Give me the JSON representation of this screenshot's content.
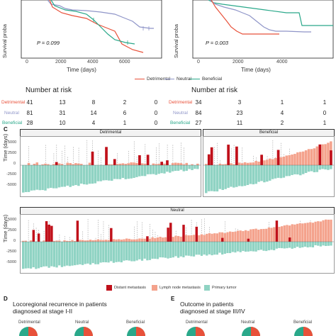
{
  "km": {
    "left": {
      "p_value": "P = 0.099",
      "y_label": "Survival proba",
      "x_label": "Time (days)",
      "x_ticks": [
        "0",
        "2000",
        "4000",
        "6000"
      ]
    },
    "right": {
      "p_value": "P = 0.003",
      "y_label": "Survival proba",
      "x_label": "Time (days)",
      "x_ticks": [
        "0",
        "2000",
        "4000"
      ]
    },
    "legend": [
      {
        "label": "Detrimental",
        "color": "#e8513a"
      },
      {
        "label": "Neutral",
        "color": "#8f95c8"
      },
      {
        "label": "Beneficial",
        "color": "#2aa88a"
      }
    ]
  },
  "risk_tables": {
    "title": "Number at risk",
    "left": {
      "rows": [
        {
          "label": "Detrimental",
          "color": "#e8513a",
          "values": [
            "41",
            "13",
            "8",
            "2",
            "0"
          ]
        },
        {
          "label": "Neutral",
          "color": "#8f95c8",
          "values": [
            "81",
            "31",
            "14",
            "6",
            "0"
          ]
        },
        {
          "label": "Beneficial",
          "color": "#2aa88a",
          "values": [
            "28",
            "10",
            "4",
            "1",
            "0"
          ]
        }
      ]
    },
    "right": {
      "rows": [
        {
          "label": "Detrimental",
          "color": "#e8513a",
          "values": [
            "34",
            "3",
            "1",
            "1"
          ]
        },
        {
          "label": "Neutral",
          "color": "#8f95c8",
          "values": [
            "84",
            "23",
            "4",
            "0"
          ]
        },
        {
          "label": "Beneficial",
          "color": "#2aa88a",
          "values": [
            "27",
            "11",
            "2",
            "1"
          ]
        }
      ]
    }
  },
  "panel_c": {
    "letter": "C",
    "y_label": "Time (days)",
    "y_ticks": [
      "5000",
      "2500",
      "0",
      "-2500",
      "-5000"
    ],
    "strips": {
      "detrimental": "Detrimental",
      "beneficial": "Beneficial",
      "neutral": "Neutral"
    },
    "legend": [
      {
        "label": "Distant metastasis",
        "color": "#c0101a"
      },
      {
        "label": "Lymph node metastasis",
        "color": "#f4a28c"
      },
      {
        "label": "Primary tumor",
        "color": "#8fd3c3"
      }
    ],
    "colors": {
      "primary": "#8fd3c3",
      "lymph": "#f4a28c",
      "distant": "#c0101a",
      "dash": "#888888"
    }
  },
  "panel_d": {
    "letter": "D",
    "title_line1": "Locoregional recurrence in patients",
    "title_line2": "diagnosed at stage I-II",
    "pies": [
      "Detrimental",
      "Neutral",
      "Beneficial"
    ]
  },
  "panel_e": {
    "letter": "E",
    "title_line1": "Outcome in patients",
    "title_line2": "diagnosed at stage III/IV",
    "pies": [
      "Detrimental",
      "Neutral",
      "Beneficial"
    ]
  },
  "pie_colors": {
    "a": "#2aa88a",
    "b": "#e8513a"
  }
}
